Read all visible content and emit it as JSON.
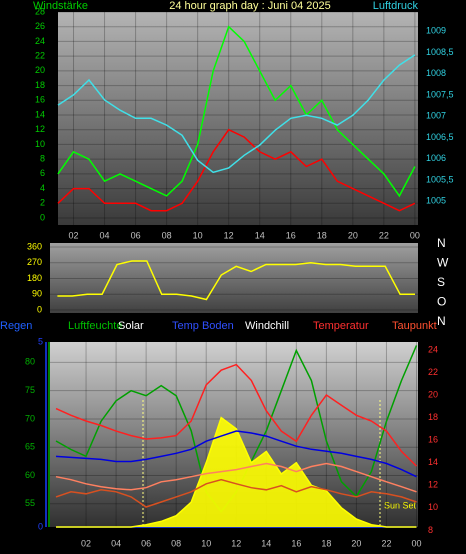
{
  "chart_data": [
    {
      "type": "line",
      "title": "24 hour graph day : Juni 04 2025",
      "y_label": "Windstärke",
      "y2_label": "Luftdruck",
      "x": [
        1,
        2,
        3,
        4,
        5,
        6,
        7,
        8,
        9,
        10,
        11,
        12,
        13,
        14,
        15,
        16,
        17,
        18,
        19,
        20,
        21,
        22,
        23,
        24
      ],
      "xlim": [
        1,
        24.2
      ],
      "xticks": [
        {
          "value": 2,
          "label": "02"
        },
        {
          "value": 4,
          "label": "04"
        },
        {
          "value": 6,
          "label": "06"
        },
        {
          "value": 8,
          "label": "08"
        },
        10,
        12,
        14,
        16,
        18,
        20,
        22,
        {
          "value": 24,
          "label": "00"
        }
      ],
      "ylim": [
        -0.95,
        28
      ],
      "yticks": [
        0,
        2,
        4,
        6,
        8,
        10,
        12,
        14,
        16,
        18,
        20,
        22,
        24,
        26,
        28
      ],
      "y2lim": [
        1004.44,
        1009.45
      ],
      "y2ticks": [
        1005,
        {
          "value": 1005.5,
          "label": "1005,5"
        },
        1006,
        {
          "value": 1006.5,
          "label": "1006,5"
        },
        1007,
        {
          "value": 1007.5,
          "label": "1007,5"
        },
        1008,
        {
          "value": 1008.5,
          "label": "1008,5"
        },
        1009
      ],
      "grid": true,
      "series": [
        {
          "color": "#00ff00",
          "values": [
            6,
            9,
            8,
            5,
            6,
            5,
            4,
            3,
            5,
            10,
            20,
            26,
            24,
            20,
            16,
            18,
            14,
            16,
            12,
            10,
            8,
            6,
            3,
            7
          ]
        },
        {
          "color": "#ff0000",
          "values": [
            2,
            4,
            4,
            2,
            2,
            2,
            1,
            1,
            2,
            5,
            9,
            12,
            11,
            9,
            8,
            9,
            7,
            8,
            5,
            4,
            3,
            2,
            1,
            2
          ]
        },
        {
          "color": "#40e0e8",
          "axis": "y2",
          "values": [
            1007.26,
            1007.5,
            1007.85,
            1007.38,
            1007.14,
            1006.95,
            1006.95,
            1006.79,
            1006.55,
            1005.96,
            1005.68,
            1005.78,
            1006.08,
            1006.32,
            1006.67,
            1006.95,
            1007.02,
            1006.95,
            1006.79,
            1007.02,
            1007.38,
            1007.85,
            1008.2,
            1008.44
          ]
        }
      ]
    },
    {
      "type": "line",
      "x": [
        0,
        1,
        2,
        3,
        4,
        5,
        6,
        7,
        8,
        9,
        10,
        11,
        12,
        13,
        14,
        15,
        16,
        17,
        18,
        19,
        20,
        21,
        22,
        23,
        24
      ],
      "xlim": [
        -0.5,
        24.2
      ],
      "ylim": [
        -17,
        383
      ],
      "yticks": [
        0,
        90,
        180,
        270,
        360
      ],
      "y2lim": [
        41.5,
        364.6
      ],
      "y2ticks": [
        {
          "value": 360,
          "label": "N"
        },
        {
          "value": 270,
          "label": "W"
        },
        {
          "value": 180,
          "label": "S"
        },
        {
          "value": 90,
          "label": "O"
        },
        {
          "value": 0,
          "label": "N"
        }
      ],
      "grid": true,
      "series": [
        {
          "color": "#ffff00",
          "values": [
            80,
            80,
            90,
            90,
            260,
            280,
            280,
            90,
            90,
            80,
            60,
            200,
            250,
            220,
            260,
            260,
            260,
            270,
            260,
            260,
            250,
            250,
            250,
            90,
            90
          ]
        }
      ]
    },
    {
      "type": "line",
      "annotations": [
        "Sun Set"
      ],
      "x": [
        0,
        1,
        2,
        3,
        4,
        5,
        6,
        7,
        8,
        9,
        10,
        11,
        12,
        13,
        14,
        15,
        16,
        17,
        18,
        19,
        20,
        21,
        22,
        23,
        24
      ],
      "xlim": [
        -0.4,
        24.1
      ],
      "xticks": [
        {
          "value": 2,
          "label": "02"
        },
        {
          "value": 4,
          "label": "04"
        },
        {
          "value": 6,
          "label": "06"
        },
        {
          "value": 8,
          "label": "08"
        },
        10,
        12,
        14,
        16,
        18,
        20,
        22,
        {
          "value": 24,
          "label": "00"
        }
      ],
      "ylim": [
        50.9,
        83.6
      ],
      "yticks": [
        55,
        60,
        65,
        70,
        75,
        80
      ],
      "y2lim": [
        8.3,
        24.7
      ],
      "y2ticks": [
        8,
        10,
        12,
        14,
        16,
        18,
        20,
        22,
        24
      ],
      "y3lim": [
        0,
        5
      ],
      "y3ticks": [
        0,
        5
      ],
      "grid": true,
      "series": [
        {
          "name": "Regen",
          "color": "#2040ff",
          "axis": "y3",
          "values": [
            0,
            0,
            0,
            0,
            0,
            0,
            0,
            0,
            0,
            0,
            0,
            0,
            0,
            0,
            0,
            0,
            0,
            0,
            0,
            0,
            0,
            0,
            0,
            0,
            0
          ]
        },
        {
          "name": "Luftfeuchte",
          "color": "#00a000",
          "values": [
            66.1,
            64.6,
            63.4,
            69.6,
            73.2,
            75,
            74.1,
            75.9,
            74.1,
            67.9,
            57.1,
            53.6,
            57.1,
            62.5,
            67.9,
            75,
            82.1,
            76.8,
            66.1,
            58.9,
            56.3,
            60.7,
            69.6,
            76.8,
            83
          ]
        },
        {
          "name": "Solar",
          "color": "#ffff00",
          "axis": "y2",
          "area": true,
          "values": [
            8.3,
            8.3,
            8.3,
            8.3,
            8.3,
            8.3,
            8.5,
            8.8,
            9.3,
            10.5,
            14,
            18,
            17,
            14,
            15,
            13,
            14,
            12,
            11.5,
            10,
            9,
            8.5,
            8.3,
            8.3,
            8.3
          ]
        },
        {
          "name": "Temp Boden",
          "color": "#0000e0",
          "axis": "y2",
          "values": [
            14.56,
            14.47,
            14.38,
            14.29,
            14.11,
            14.11,
            14.29,
            14.56,
            14.83,
            15.19,
            15.91,
            16.36,
            16.81,
            16.63,
            16.36,
            15.91,
            15.46,
            15.19,
            15.01,
            14.83,
            14.56,
            14.29,
            13.93,
            13.39,
            12.76
          ]
        },
        {
          "name": "Windchill",
          "color": "#ff8060",
          "axis": "y2",
          "values": [
            12.76,
            12.49,
            12.13,
            11.87,
            11.69,
            11.6,
            11.78,
            12.31,
            12.49,
            12.76,
            13.03,
            13.21,
            13.39,
            13.66,
            13.93,
            13.66,
            13.21,
            13.66,
            13.93,
            13.66,
            13.21,
            12.76,
            12.31,
            11.87,
            11.42
          ]
        },
        {
          "name": "Temperatur",
          "color": "#ff2020",
          "axis": "y2",
          "values": [
            18.8,
            18.2,
            17.7,
            17.3,
            16.8,
            16.4,
            16.1,
            16.2,
            16.4,
            17.7,
            20.9,
            22.2,
            22.7,
            21.3,
            18.6,
            16.8,
            15.9,
            18.2,
            20,
            19.1,
            18.2,
            17.7,
            16.8,
            15,
            13.7
          ]
        },
        {
          "name": "Taupunkt",
          "color": "#d85020",
          "axis": "y2",
          "values": [
            10.97,
            11.42,
            11.24,
            11.6,
            11.42,
            10.97,
            10.07,
            10.52,
            10.97,
            11.42,
            12.13,
            12.49,
            12.13,
            11.78,
            11.6,
            11.96,
            11.42,
            11.87,
            11.6,
            11.24,
            10.97,
            11.42,
            11.24,
            10.97,
            10.52
          ]
        }
      ]
    }
  ]
}
